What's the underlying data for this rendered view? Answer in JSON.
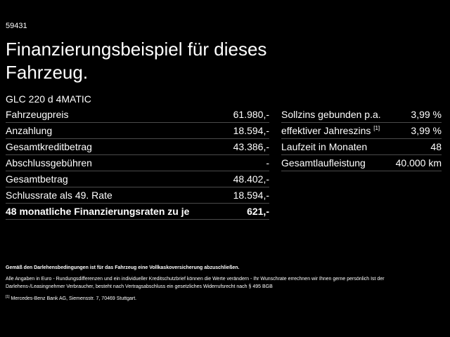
{
  "header": {
    "id": "59431",
    "title": "Finanzierungsbeispiel für dieses Fahrzeug.",
    "model": "GLC 220 d 4MATIC"
  },
  "left_table": {
    "rows": [
      [
        "Fahrzeugpreis",
        "61.980,-"
      ],
      [
        "Anzahlung",
        "18.594,-"
      ],
      [
        "Gesamtkreditbetrag",
        "43.386,-"
      ],
      [
        "Abschlussgebühren",
        "-"
      ],
      [
        "Gesamtbetrag",
        "48.402,-"
      ],
      [
        "Schlussrate als 49. Rate",
        "18.594,-"
      ],
      [
        "48 monatliche Finanzierungsraten zu je",
        "621,-"
      ]
    ]
  },
  "right_table": {
    "rows": [
      [
        "Sollzins gebunden p.a.",
        "3,99 %"
      ],
      [
        "effektiver Jahreszins",
        "3,99 %"
      ],
      [
        "Laufzeit in Monaten",
        "48"
      ],
      [
        "Gesamtlaufleistung",
        "40.000 km"
      ]
    ],
    "footnote_ref": "[1]"
  },
  "footer": {
    "bold_note": "Gemäß den Darlehensbedingungen ist für das Fahrzeug eine Vollkaskoversicherung abzuschließen.",
    "note": "Alle Angaben in Euro - Rundungsdifferenzen und ein individueller Kreditschutzbrief können die Werte verändern - Ihr Wunschrate errechnen wir Ihnen gerne persönlich Ist der Darlehens-/Leasingnehmer Verbraucher, besteht nach Vertragsabschluss ein gesetzliches Widerrufsrecht nach § 495 BGB",
    "footnote_marker": "[1]",
    "footnote": "Mercedes-Benz Bank AG, Siemensstr. 7, 70469 Stuttgart."
  }
}
